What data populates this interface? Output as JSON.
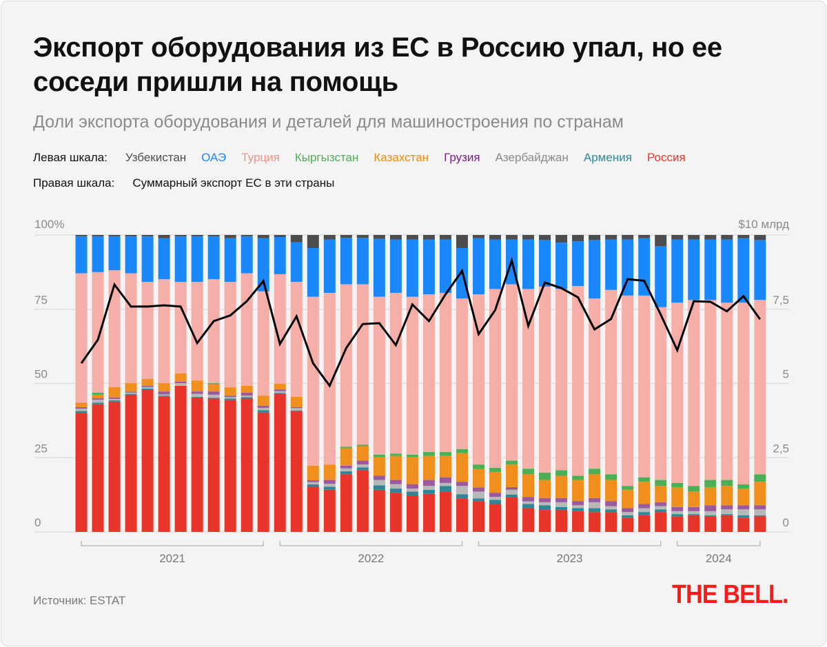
{
  "title": "Экспорт оборудования из ЕС в Россию упал, но ее соседи пришли на помощь",
  "subtitle": "Доли экспорта оборудования и деталей для машиностроения по странам",
  "source": "Источник: ESTAT",
  "logo": "THE BELL.",
  "chart_data": {
    "type": "bar",
    "stacked": true,
    "title": "Экспорт оборудования из ЕС в Россию упал, но ее соседи пришли на помощь",
    "left_axis": {
      "label": "Левая шкала:",
      "unit_label": "100%",
      "ticks": [
        "0",
        "25",
        "50",
        "75"
      ],
      "tick_values": [
        0,
        25,
        50,
        75,
        100
      ],
      "range": [
        0,
        100
      ]
    },
    "right_axis": {
      "label": "Правая шкала:",
      "unit_label": "$10 млрд",
      "ticks": [
        "0",
        "2,5",
        "5",
        "7,5"
      ],
      "tick_values": [
        0,
        2.5,
        5,
        7.5,
        10
      ],
      "range": [
        0,
        10
      ]
    },
    "years": [
      {
        "label": "2021",
        "count": 12
      },
      {
        "label": "2022",
        "count": 12
      },
      {
        "label": "2023",
        "count": 12
      },
      {
        "label": "2024",
        "count": 6
      }
    ],
    "series": [
      {
        "name": "Россия",
        "color": "#e8352a",
        "text_color": "#e8352a",
        "values": [
          40.0,
          43.0,
          43.9,
          46.2,
          47.8,
          45.5,
          49.2,
          45.3,
          44.9,
          44.4,
          44.9,
          40.2,
          46.4,
          40.7,
          15.2,
          14.2,
          19.4,
          20.8,
          14.2,
          13.2,
          12.3,
          12.8,
          13.6,
          11.3,
          10.3,
          9.4,
          11.7,
          8.0,
          7.4,
          7.4,
          7.0,
          6.7,
          6.7,
          4.7,
          5.6,
          6.7,
          5.3,
          5.6,
          5.3,
          5.6,
          4.7,
          5.3
        ]
      },
      {
        "name": "Армения",
        "color": "#2e8797",
        "text_color": "#2e8797",
        "values": [
          0.7,
          0.5,
          0.4,
          0.3,
          0.5,
          0.4,
          0,
          0.2,
          0.3,
          0.5,
          0.5,
          0.8,
          0.4,
          0.2,
          0.8,
          1.0,
          1.0,
          0.9,
          1.5,
          1.4,
          1.3,
          1.4,
          1.9,
          1.4,
          1.0,
          1.4,
          0.9,
          1.4,
          1.6,
          1.0,
          1.0,
          1.3,
          0.9,
          0.9,
          1.1,
          0.9,
          0.7,
          0.4,
          0.3,
          0.4,
          0.9,
          0.3
        ]
      },
      {
        "name": "Азербайджан",
        "color": "#b8b8b8",
        "text_color": "#8a8a8a",
        "values": [
          0.8,
          1.0,
          0.5,
          0.4,
          0.5,
          0.4,
          0.9,
          1.0,
          1.0,
          0.5,
          0.5,
          0.8,
          0.6,
          0.8,
          0.8,
          1.0,
          1.0,
          1.0,
          1.8,
          1.5,
          1.0,
          1.3,
          1.0,
          2.8,
          2.3,
          1.0,
          1.6,
          0.9,
          1.0,
          1.6,
          1.0,
          2.0,
          1.1,
          1.1,
          1.3,
          1.1,
          1.0,
          1.0,
          1.4,
          1.6,
          2.0,
          2.0
        ]
      },
      {
        "name": "Грузия",
        "color": "#9b5a9c",
        "text_color": "#7d1f8a",
        "values": [
          0.5,
          0.5,
          0.5,
          0.3,
          0.4,
          1.0,
          0.5,
          0.8,
          1.1,
          0.5,
          1.0,
          0.7,
          0.6,
          0.3,
          0.6,
          1.3,
          0.9,
          1.3,
          1.4,
          1.4,
          1.5,
          2.0,
          1.9,
          1.4,
          1.4,
          1.4,
          0.9,
          1.5,
          1.4,
          1.4,
          1.4,
          1.4,
          1.7,
          1.3,
          1.4,
          1.3,
          1.4,
          1.4,
          2.0,
          1.4,
          1.4,
          1.4
        ]
      },
      {
        "name": "Казахстан",
        "color": "#f08e1e",
        "text_color": "#f08a10",
        "values": [
          1.5,
          1.2,
          3.5,
          2.9,
          2.3,
          2.8,
          2.8,
          3.7,
          2.4,
          2.8,
          2.3,
          3.4,
          1.9,
          3.5,
          4.9,
          5.2,
          5.9,
          4.9,
          6.3,
          8.1,
          9.1,
          8.1,
          7.2,
          9.6,
          6.2,
          7.0,
          7.6,
          7.6,
          6.1,
          7.5,
          7.1,
          8.0,
          7.1,
          6.2,
          7.5,
          5.5,
          6.7,
          5.2,
          6.1,
          6.5,
          5.6,
          7.9
        ]
      },
      {
        "name": "Кыргызстан",
        "color": "#4cae55",
        "text_color": "#4cae55",
        "values": [
          0,
          0.7,
          0,
          0,
          0,
          0,
          0,
          0,
          0.4,
          0,
          0,
          0,
          0,
          0,
          0,
          0,
          0.5,
          0.5,
          0.8,
          0.8,
          0.8,
          1.3,
          1.3,
          1.4,
          1.5,
          1.4,
          1.3,
          1.9,
          2.5,
          1.9,
          1.4,
          1.9,
          1.9,
          1.3,
          1.5,
          2.0,
          1.4,
          1.9,
          2.4,
          2.0,
          1.4,
          2.5
        ]
      },
      {
        "name": "Турция",
        "color": "#f6aea9",
        "text_color": "#f0918b",
        "values": [
          43.6,
          40.6,
          39.3,
          37.0,
          32.7,
          35.0,
          30.8,
          33.2,
          35.0,
          35.5,
          37.9,
          35.1,
          36.9,
          38.7,
          56.9,
          57.8,
          54.7,
          54.0,
          53.2,
          54.1,
          53.2,
          53.1,
          53.6,
          50.7,
          57.3,
          60.2,
          59.4,
          60.5,
          62.6,
          61.0,
          63.9,
          57.3,
          62.1,
          64.1,
          61.2,
          58.2,
          60.7,
          62.6,
          60.6,
          59.7,
          61.2,
          58.7
        ]
      },
      {
        "name": "ОАЭ",
        "color": "#1a88fb",
        "text_color": "#1a88fb",
        "values": [
          12.4,
          12.0,
          11.4,
          12.4,
          15.3,
          13.8,
          15.3,
          15.3,
          14.4,
          14.7,
          12.4,
          17.9,
          12.5,
          13.3,
          16.4,
          18.0,
          15.6,
          15.6,
          19.5,
          18.0,
          19.3,
          18.5,
          18.0,
          17.0,
          18.9,
          16.7,
          15.1,
          16.7,
          15.7,
          15.6,
          15.1,
          19.7,
          17.0,
          18.9,
          19.3,
          20.5,
          21.3,
          20.4,
          20.4,
          21.3,
          21.7,
          20.2
        ]
      },
      {
        "name": "Узбекистан",
        "color": "#4d4d4d",
        "text_color": "#4d4d4d",
        "values": [
          0.5,
          0.5,
          0.5,
          0.5,
          0.5,
          1.1,
          0.5,
          0.5,
          0.5,
          1.1,
          0.5,
          1.1,
          0.7,
          2.5,
          4.4,
          1.5,
          1.0,
          1.0,
          1.3,
          1.5,
          1.5,
          1.5,
          1.5,
          4.4,
          1.1,
          1.5,
          1.5,
          1.5,
          1.7,
          2.6,
          2.1,
          1.7,
          1.5,
          1.5,
          1.1,
          3.8,
          1.5,
          1.5,
          1.5,
          1.5,
          1.1,
          1.7
        ]
      }
    ],
    "legend_order": [
      "Узбекистан",
      "ОАЭ",
      "Турция",
      "Кыргызстан",
      "Казахстан",
      "Грузия",
      "Азербайджан",
      "Армения",
      "Россия"
    ],
    "line": {
      "name": "Суммарный экспорт  ЕС в эти страны",
      "axis": "right",
      "unit": "$ млрд",
      "color": "#000000",
      "values": [
        5.68,
        6.47,
        8.33,
        7.59,
        7.59,
        7.63,
        7.59,
        6.36,
        7.1,
        7.29,
        7.77,
        8.45,
        6.33,
        7.26,
        5.68,
        4.92,
        6.19,
        7.0,
        7.03,
        6.29,
        7.66,
        7.1,
        8.0,
        8.79,
        6.66,
        7.47,
        9.14,
        6.94,
        8.4,
        8.21,
        7.9,
        6.82,
        7.17,
        8.51,
        8.46,
        7.32,
        6.12,
        7.77,
        7.75,
        7.43,
        7.94,
        7.16
      ]
    }
  }
}
